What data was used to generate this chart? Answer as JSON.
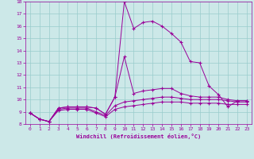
{
  "xlabel": "Windchill (Refroidissement éolien,°C)",
  "background_color": "#cce8e8",
  "line_color": "#990099",
  "grid_color": "#99cccc",
  "xlim": [
    -0.5,
    23.5
  ],
  "ylim": [
    8,
    18
  ],
  "yticks": [
    8,
    9,
    10,
    11,
    12,
    13,
    14,
    15,
    16,
    17,
    18
  ],
  "xticks": [
    0,
    1,
    2,
    3,
    4,
    5,
    6,
    7,
    8,
    9,
    10,
    11,
    12,
    13,
    14,
    15,
    16,
    17,
    18,
    19,
    20,
    21,
    22,
    23
  ],
  "series1_x": [
    0,
    1,
    2,
    3,
    4,
    5,
    6,
    7,
    8,
    9,
    10,
    11,
    12,
    13,
    14,
    15,
    16,
    17,
    18,
    19,
    20,
    21,
    22,
    23
  ],
  "series1_y": [
    8.9,
    8.4,
    8.2,
    9.3,
    9.4,
    9.4,
    9.4,
    9.3,
    8.8,
    10.2,
    18.0,
    15.8,
    16.3,
    16.4,
    16.0,
    15.4,
    14.7,
    13.1,
    13.0,
    11.1,
    10.4,
    9.4,
    9.9,
    9.9
  ],
  "series2_x": [
    0,
    1,
    2,
    3,
    4,
    5,
    6,
    7,
    8,
    9,
    10,
    11,
    12,
    13,
    14,
    15,
    16,
    17,
    18,
    19,
    20,
    21,
    22,
    23
  ],
  "series2_y": [
    8.9,
    8.4,
    8.2,
    9.3,
    9.4,
    9.4,
    9.4,
    9.3,
    8.8,
    10.2,
    13.5,
    10.5,
    10.7,
    10.8,
    10.9,
    10.9,
    10.5,
    10.3,
    10.2,
    10.2,
    10.2,
    10.0,
    9.9,
    9.9
  ],
  "series3_x": [
    0,
    1,
    2,
    3,
    4,
    5,
    6,
    7,
    8,
    9,
    10,
    11,
    12,
    13,
    14,
    15,
    16,
    17,
    18,
    19,
    20,
    21,
    22,
    23
  ],
  "series3_y": [
    8.9,
    8.4,
    8.2,
    9.2,
    9.3,
    9.3,
    9.3,
    9.0,
    8.7,
    9.5,
    9.8,
    9.9,
    10.0,
    10.1,
    10.2,
    10.2,
    10.1,
    10.0,
    10.0,
    10.0,
    10.0,
    9.9,
    9.8,
    9.8
  ],
  "series4_x": [
    0,
    1,
    2,
    3,
    4,
    5,
    6,
    7,
    8,
    9,
    10,
    11,
    12,
    13,
    14,
    15,
    16,
    17,
    18,
    19,
    20,
    21,
    22,
    23
  ],
  "series4_y": [
    8.9,
    8.4,
    8.2,
    9.1,
    9.2,
    9.2,
    9.2,
    8.9,
    8.6,
    9.2,
    9.4,
    9.5,
    9.6,
    9.7,
    9.8,
    9.8,
    9.8,
    9.7,
    9.7,
    9.7,
    9.7,
    9.6,
    9.6,
    9.6
  ]
}
